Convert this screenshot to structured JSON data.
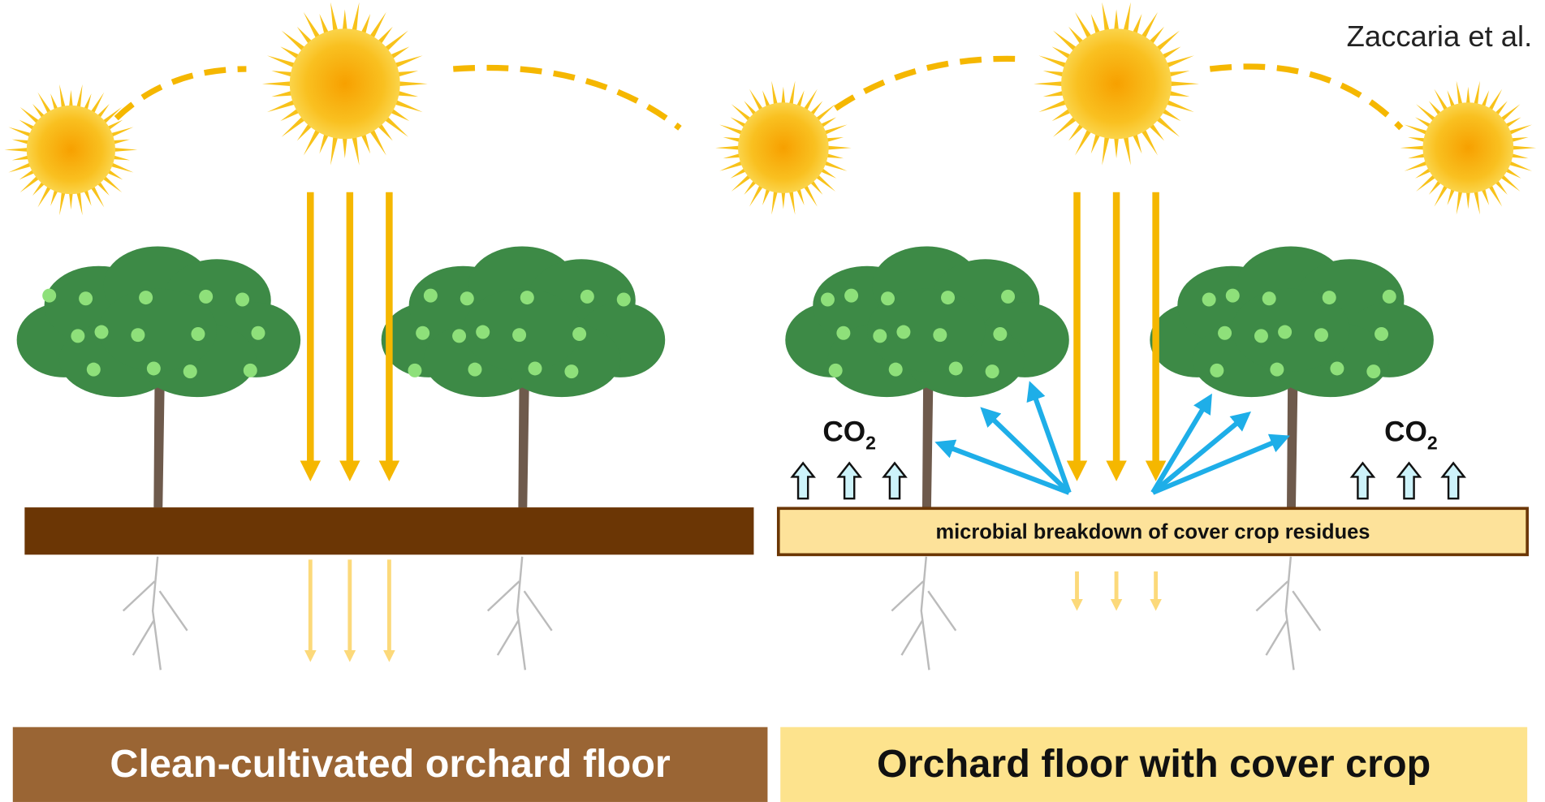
{
  "credit": "Zaccaria et al.",
  "left_panel": {
    "co2": null,
    "banner": "Clean-cultivated orchard floor"
  },
  "right_panel": {
    "co2_left": {
      "main": "CO",
      "sub": "2"
    },
    "co2_right": {
      "main": "CO",
      "sub": "2"
    },
    "soil_label": "microbial breakdown of cover crop residues",
    "banner": "Orchard floor with cover crop"
  }
}
